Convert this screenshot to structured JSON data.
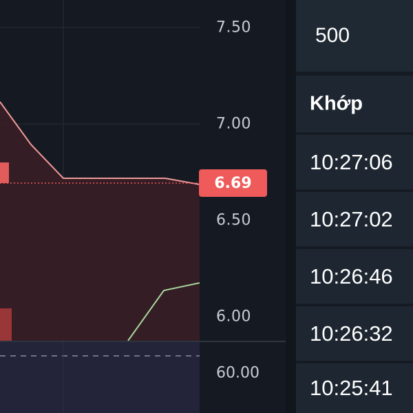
{
  "chart": {
    "price_axis_ticks": [
      "7.50",
      "7.00",
      "6.50",
      "6.00"
    ],
    "current_price": "6.69",
    "oscillator_axis_tick": "60.00",
    "colors": {
      "price_line": "#f29a9a",
      "area_fill": "#3a1f24",
      "indicator_line": "#a8d8a0",
      "price_tag": "#ef5a5a",
      "oscillator_bg": "#232339",
      "volume_bar": "#e25c5c"
    }
  },
  "table": {
    "top_value": "500",
    "header": "Khớp",
    "times": [
      "10:27:06",
      "10:27:02",
      "10:26:46",
      "10:26:32",
      "10:25:41"
    ]
  }
}
